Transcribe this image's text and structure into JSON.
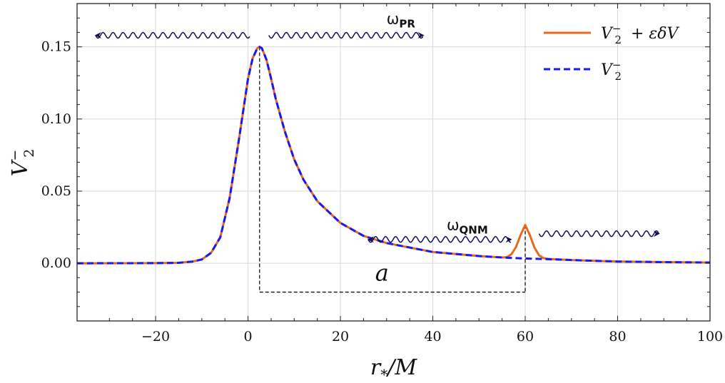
{
  "chart_data": {
    "type": "line",
    "xlabel": "r_*/M",
    "ylabel": "V_2^-",
    "xlim": [
      -37,
      100
    ],
    "ylim": [
      -0.04,
      0.18
    ],
    "x_ticks": [
      -20,
      0,
      20,
      40,
      60,
      80,
      100
    ],
    "x_tick_labels": [
      "−20",
      "0",
      "20",
      "40",
      "60",
      "80",
      "100"
    ],
    "y_ticks": [
      0.0,
      0.05,
      0.1,
      0.15
    ],
    "y_tick_labels": [
      "0.00",
      "0.05",
      "0.10",
      "0.15"
    ],
    "grid": true,
    "legend_position": "top-right",
    "series": [
      {
        "name": "V_2^- + εδV",
        "color": "#e8681c",
        "style": "solid",
        "x": [
          -37,
          -20,
          -15,
          -12,
          -10,
          -8,
          -6,
          -4,
          -2,
          0,
          1,
          2,
          2.5,
          3,
          4,
          5,
          6,
          8,
          10,
          12,
          15,
          20,
          25,
          30,
          40,
          50,
          55,
          56,
          57,
          58,
          59,
          60,
          61,
          62,
          63,
          64,
          65,
          70,
          80,
          90,
          100
        ],
        "y": [
          0,
          0.0001,
          0.0003,
          0.0012,
          0.0026,
          0.0072,
          0.018,
          0.045,
          0.085,
          0.128,
          0.142,
          0.149,
          0.15,
          0.149,
          0.141,
          0.128,
          0.114,
          0.091,
          0.072,
          0.058,
          0.043,
          0.028,
          0.019,
          0.014,
          0.0078,
          0.005,
          0.004,
          0.0042,
          0.0062,
          0.0112,
          0.0195,
          0.0265,
          0.0195,
          0.0108,
          0.0055,
          0.0035,
          0.003,
          0.0022,
          0.0012,
          0.0008,
          0.0005
        ]
      },
      {
        "name": "V_2^-",
        "color": "#1a1aee",
        "style": "dashed",
        "x": [
          -37,
          -20,
          -15,
          -12,
          -10,
          -8,
          -6,
          -4,
          -2,
          0,
          1,
          2,
          2.5,
          3,
          4,
          5,
          6,
          8,
          10,
          12,
          15,
          20,
          25,
          30,
          40,
          50,
          55,
          60,
          65,
          70,
          80,
          90,
          100
        ],
        "y": [
          0,
          0.0001,
          0.0003,
          0.0012,
          0.0026,
          0.0072,
          0.018,
          0.045,
          0.085,
          0.128,
          0.142,
          0.149,
          0.15,
          0.149,
          0.141,
          0.128,
          0.114,
          0.091,
          0.072,
          0.058,
          0.043,
          0.028,
          0.019,
          0.014,
          0.0078,
          0.005,
          0.004,
          0.0033,
          0.0028,
          0.0022,
          0.0012,
          0.0008,
          0.0005
        ]
      }
    ],
    "annotations": {
      "omega_pr": {
        "symbol": "ω",
        "sub": "PR",
        "x_from": -33,
        "x_to": 38,
        "y": 0.158,
        "text_x": 30,
        "text_y": 0.166
      },
      "omega_qnm": {
        "symbol": "ω",
        "sub": "QNM",
        "x_from": 26,
        "x_to": 57,
        "y": 0.0165,
        "x2_from": 63,
        "x2_to": 89,
        "y2": 0.0205,
        "text_x": 43,
        "text_y": 0.023
      },
      "distance": {
        "label": "a",
        "x_from": 2.5,
        "x_to": 60,
        "y": -0.02,
        "text_x": 29,
        "text_y": -0.012
      }
    }
  }
}
